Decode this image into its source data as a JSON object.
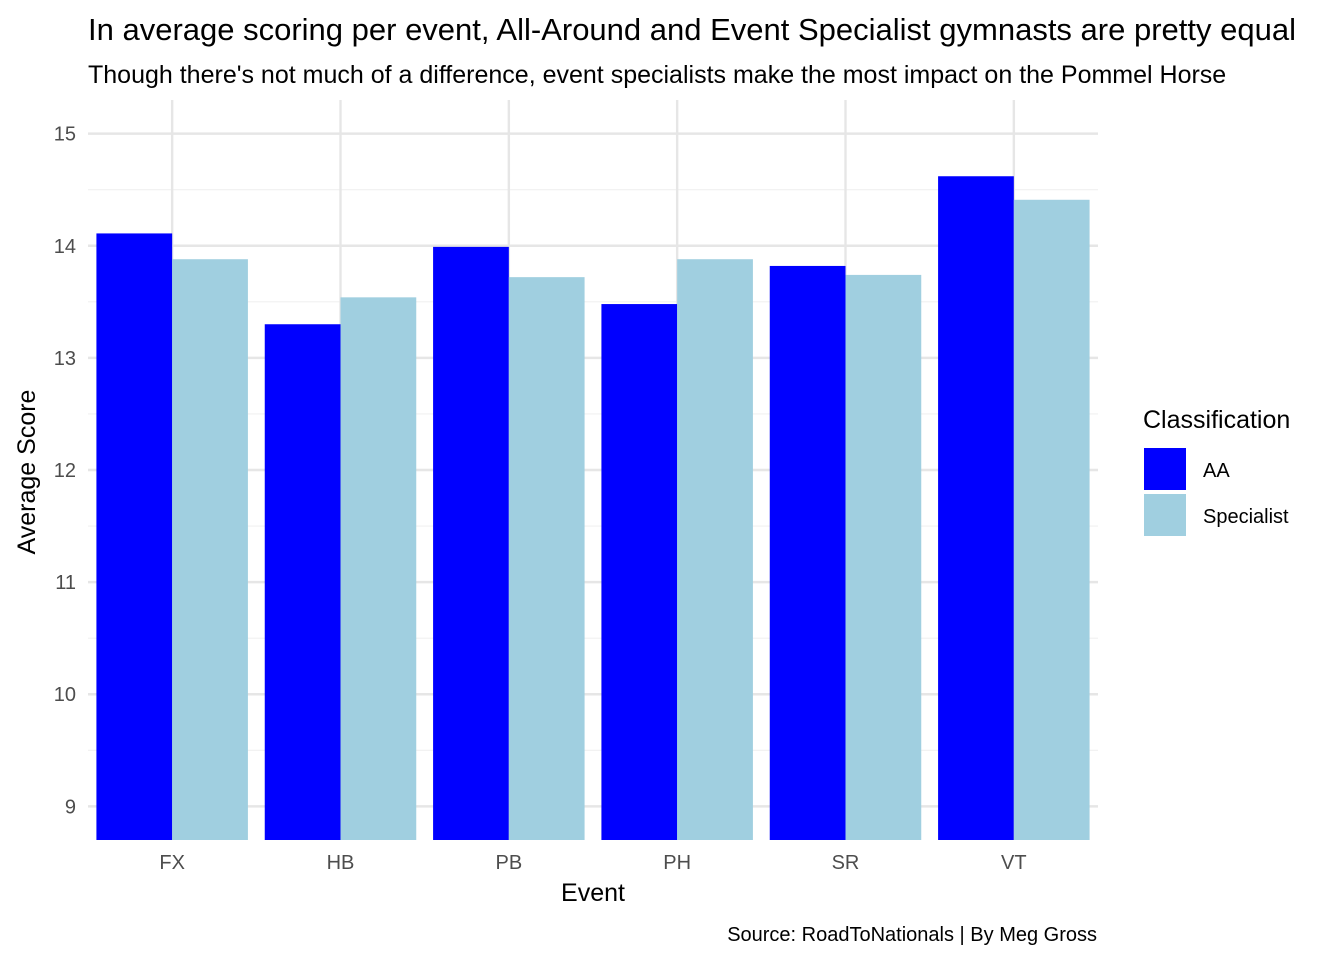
{
  "chart_data": {
    "type": "bar",
    "title": "In average scoring per event, All-Around and Event Specialist gymnasts are pretty equal",
    "subtitle": "Though there's not much of a difference, event specialists make the most impact on the Pommel Horse",
    "xlabel": "Event",
    "ylabel": "Average Score",
    "caption": "Source: RoadToNationals | By Meg Gross",
    "categories": [
      "FX",
      "HB",
      "PB",
      "PH",
      "SR",
      "VT"
    ],
    "ylim": [
      8.7,
      15.3
    ],
    "yticks": [
      9,
      10,
      11,
      12,
      13,
      14,
      15
    ],
    "ytick_labels": [
      "9",
      "10",
      "11",
      "12",
      "13",
      "14",
      "15"
    ],
    "grid": true,
    "legend": {
      "title": "Classification",
      "placement": "right"
    },
    "series": [
      {
        "name": "AA",
        "color": "#0000ff",
        "values": [
          14.11,
          13.3,
          13.99,
          13.48,
          13.82,
          14.62
        ]
      },
      {
        "name": "Specialist",
        "color": "#a0cfe0",
        "values": [
          13.88,
          13.54,
          13.72,
          13.88,
          13.74,
          14.41
        ]
      }
    ]
  }
}
